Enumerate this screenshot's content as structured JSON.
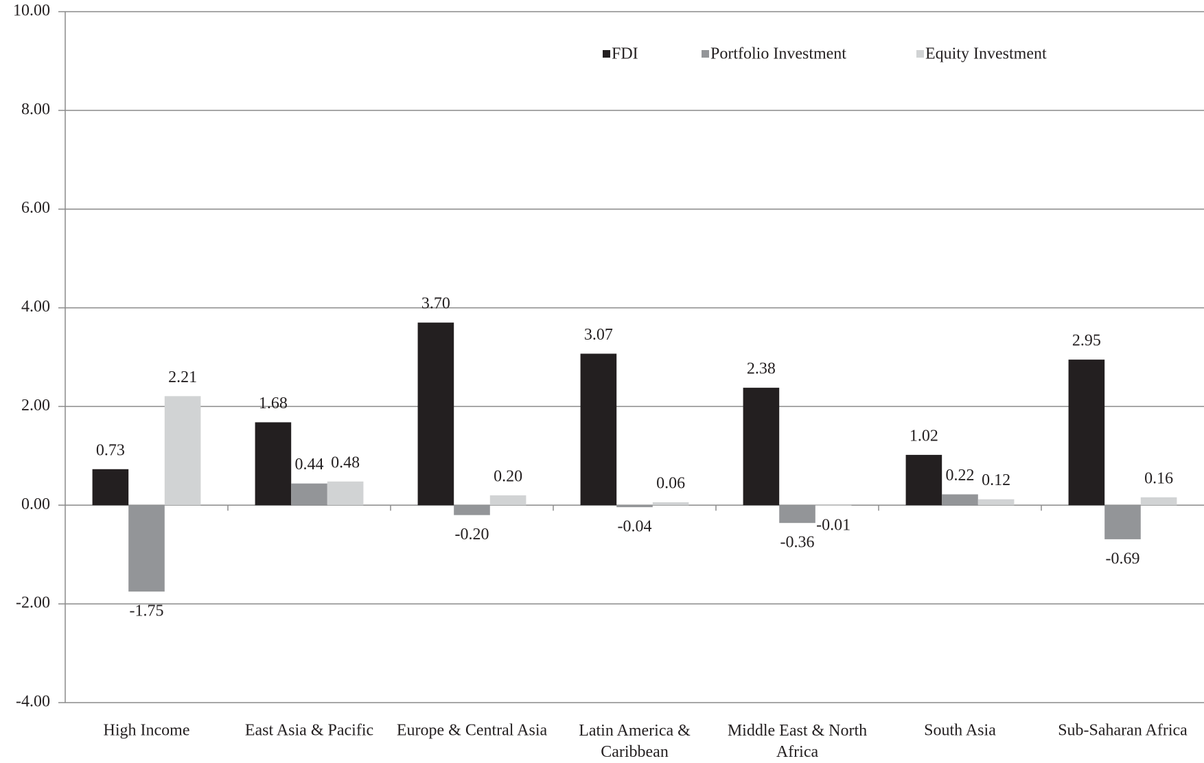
{
  "chart_data": {
    "type": "bar",
    "categories": [
      "High Income",
      "East Asia & Pacific",
      "Europe & Central Asia",
      "Latin America & Caribbean",
      "Middle East & North Africa",
      "South Asia",
      "Sub-Saharan Africa"
    ],
    "series": [
      {
        "name": "FDI",
        "color": "#231f20",
        "values": [
          0.73,
          1.68,
          3.7,
          3.07,
          2.38,
          1.02,
          2.95
        ],
        "value_labels": [
          "0.73",
          "1.68",
          "3.70",
          "3.07",
          "2.38",
          "1.02",
          "2.95"
        ]
      },
      {
        "name": "Portfolio Investment",
        "color": "#939598",
        "values": [
          -1.75,
          0.44,
          -0.2,
          -0.04,
          -0.36,
          0.22,
          -0.69
        ],
        "value_labels": [
          "-1.75",
          "0.44",
          "-0.20",
          "-0.04",
          "-0.36",
          "0.22",
          "-0.69"
        ]
      },
      {
        "name": "Equity Investment",
        "color": "#d1d3d4",
        "values": [
          2.21,
          0.48,
          0.2,
          0.06,
          -0.01,
          0.12,
          0.16
        ],
        "value_labels": [
          "2.21",
          "0.48",
          "0.20",
          "0.06",
          "-0.01",
          "0.12",
          "0.16"
        ]
      }
    ],
    "ylim": [
      -4,
      10
    ],
    "yticks": [
      {
        "value": -4,
        "label": "-4.00"
      },
      {
        "value": -2,
        "label": "-2.00"
      },
      {
        "value": 0,
        "label": "0.00"
      },
      {
        "value": 2,
        "label": "2.00"
      },
      {
        "value": 4,
        "label": "4.00"
      },
      {
        "value": 6,
        "label": "6.00"
      },
      {
        "value": 8,
        "label": "8.00"
      },
      {
        "value": 10,
        "label": "10.00"
      }
    ],
    "grid": true,
    "legend": "top"
  }
}
